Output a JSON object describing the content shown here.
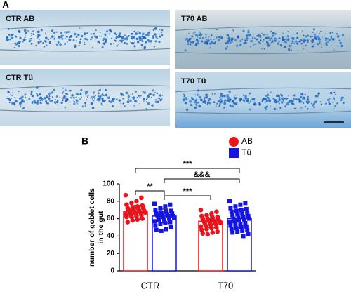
{
  "panel_labels": [
    "A",
    "B"
  ],
  "micrographs": [
    {
      "label": "CTR AB"
    },
    {
      "label": "T70 AB"
    },
    {
      "label": "CTR Tü"
    },
    {
      "label": "T70 Tü"
    }
  ],
  "chart_data": {
    "type": "bar",
    "ylabel": [
      "number of goblet cells",
      "in the gut"
    ],
    "categories": [
      "CTR",
      "T70"
    ],
    "series": [
      {
        "name": "AB",
        "color": "#e8131b",
        "marker": "circle",
        "values": [
          68,
          57
        ],
        "errors": [
          7,
          7
        ],
        "points": [
          [
            87,
            84,
            80,
            78,
            76,
            75,
            74,
            73,
            72,
            72,
            71,
            70,
            70,
            69,
            69,
            68,
            68,
            67,
            67,
            66,
            65,
            65,
            64,
            63,
            62,
            62,
            60,
            59,
            58,
            56
          ],
          [
            70,
            68,
            66,
            64,
            63,
            62,
            61,
            60,
            60,
            59,
            58,
            58,
            57,
            57,
            56,
            56,
            55,
            55,
            54,
            53,
            52,
            51,
            50,
            49,
            48,
            47,
            45,
            44,
            42,
            43
          ]
        ]
      },
      {
        "name": "Tü",
        "color": "#1414e6",
        "marker": "square",
        "values": [
          63,
          60
        ],
        "errors": [
          8,
          10
        ],
        "points": [
          [
            77,
            76,
            74,
            72,
            70,
            69,
            68,
            67,
            66,
            66,
            65,
            64,
            64,
            63,
            63,
            62,
            62,
            61,
            60,
            59,
            58,
            57,
            56,
            55,
            54,
            52,
            50,
            48,
            46,
            47
          ],
          [
            80,
            78,
            76,
            74,
            72,
            71,
            70,
            69,
            68,
            67,
            66,
            65,
            64,
            63,
            62,
            61,
            60,
            60,
            59,
            58,
            57,
            56,
            55,
            54,
            53,
            52,
            51,
            50,
            49,
            48,
            47,
            46,
            45,
            44,
            42,
            40
          ]
        ]
      }
    ],
    "ylim": [
      0,
      100
    ],
    "yticks": [
      0,
      20,
      40,
      60,
      80,
      100
    ],
    "annotations": [
      "***",
      "&&&",
      "**",
      "***"
    ]
  }
}
